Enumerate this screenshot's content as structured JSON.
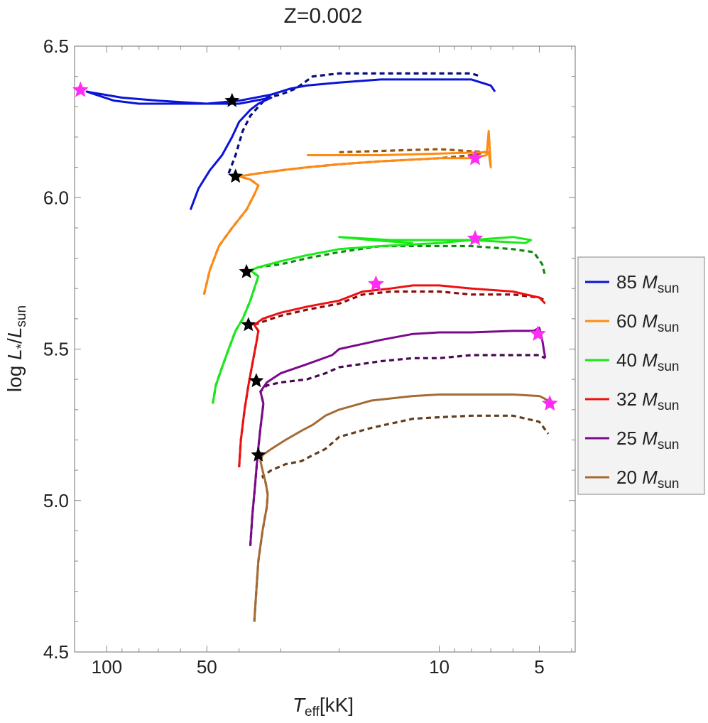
{
  "chart_data": {
    "type": "line",
    "title": "Z=0.002",
    "xlabel_main": "T",
    "xlabel_sub": "eff",
    "xlabel_unit": "[kK]",
    "ylabel_prefix": "log ",
    "ylabel_L": "L",
    "ylabel_star": "*",
    "ylabel_sun": "sun",
    "x_scale": "log",
    "x_reversed": true,
    "xlim": [
      125,
      3.9
    ],
    "ylim": [
      4.5,
      6.5
    ],
    "x_ticks": [
      100,
      50,
      10,
      5
    ],
    "x_tick_labels": [
      "100",
      "50",
      "10",
      "5"
    ],
    "y_ticks": [
      4.5,
      5.0,
      5.5,
      6.0,
      6.5
    ],
    "y_tick_labels": [
      "4.5",
      "5.0",
      "5.5",
      "6.0",
      "6.5"
    ],
    "grid": false,
    "legend_position": "right",
    "legend_unit_M": "M",
    "legend_unit_sub": "sun",
    "series": [
      {
        "name": "85",
        "color": "#0a14d6",
        "solid": [
          [
            56,
            5.96
          ],
          [
            53,
            6.03
          ],
          [
            49,
            6.09
          ],
          [
            45,
            6.14
          ],
          [
            42,
            6.2
          ],
          [
            40,
            6.25
          ],
          [
            37,
            6.29
          ],
          [
            35,
            6.31
          ],
          [
            32,
            6.33
          ],
          [
            40,
            6.31
          ],
          [
            60,
            6.31
          ],
          [
            80,
            6.31
          ],
          [
            95,
            6.32
          ],
          [
            115,
            6.35
          ],
          [
            90,
            6.33
          ],
          [
            70,
            6.32
          ],
          [
            50,
            6.31
          ],
          [
            40,
            6.32
          ],
          [
            32,
            6.34
          ],
          [
            28,
            6.36
          ],
          [
            25,
            6.37
          ],
          [
            20,
            6.38
          ],
          [
            15,
            6.39
          ],
          [
            10,
            6.39
          ],
          [
            8,
            6.39
          ],
          [
            7,
            6.37
          ],
          [
            6.8,
            6.35
          ]
        ],
        "dashed": [
          [
            43,
            6.08
          ],
          [
            41,
            6.14
          ],
          [
            39,
            6.22
          ],
          [
            37,
            6.27
          ],
          [
            35,
            6.3
          ],
          [
            33,
            6.33
          ],
          [
            30,
            6.34
          ],
          [
            27,
            6.36
          ],
          [
            24,
            6.4
          ],
          [
            20,
            6.41
          ],
          [
            15,
            6.41
          ],
          [
            10,
            6.41
          ],
          [
            8,
            6.41
          ],
          [
            7.5,
            6.4
          ]
        ],
        "zams_marker": [
          42,
          6.32
        ],
        "end_marker": [
          120,
          6.355
        ]
      },
      {
        "name": "60",
        "color": "#ff8a12",
        "solid": [
          [
            51,
            5.68
          ],
          [
            49,
            5.76
          ],
          [
            46,
            5.84
          ],
          [
            42,
            5.9
          ],
          [
            38,
            5.96
          ],
          [
            36,
            6.01
          ],
          [
            35,
            6.04
          ],
          [
            37,
            6.06
          ],
          [
            40,
            6.07
          ],
          [
            35,
            6.08
          ],
          [
            30,
            6.09
          ],
          [
            25,
            6.1
          ],
          [
            20,
            6.11
          ],
          [
            15,
            6.12
          ],
          [
            10,
            6.13
          ],
          [
            8,
            6.13
          ],
          [
            7.2,
            6.14
          ],
          [
            7.1,
            6.22
          ],
          [
            7.0,
            6.1
          ],
          [
            7.1,
            6.15
          ],
          [
            15,
            6.14
          ],
          [
            25,
            6.14
          ]
        ],
        "dashed": [
          [
            51,
            5.68
          ],
          [
            49,
            5.76
          ],
          [
            46,
            5.84
          ],
          [
            42,
            5.9
          ],
          [
            38,
            5.96
          ],
          [
            36,
            6.01
          ],
          [
            35,
            6.04
          ],
          [
            37,
            6.06
          ],
          [
            40,
            6.07
          ],
          [
            35,
            6.08
          ],
          [
            30,
            6.09
          ],
          [
            25,
            6.1
          ],
          [
            20,
            6.11
          ],
          [
            15,
            6.12
          ],
          [
            10,
            6.13
          ],
          [
            8,
            6.14
          ],
          [
            7.2,
            6.15
          ],
          [
            10,
            6.16
          ],
          [
            20,
            6.15
          ]
        ],
        "zams_marker": [
          41,
          6.07
        ],
        "end_marker": [
          7.8,
          6.13
        ]
      },
      {
        "name": "40",
        "color": "#18ea18",
        "solid": [
          [
            48,
            5.32
          ],
          [
            47,
            5.38
          ],
          [
            45,
            5.44
          ],
          [
            43,
            5.5
          ],
          [
            41,
            5.56
          ],
          [
            39,
            5.6
          ],
          [
            37,
            5.66
          ],
          [
            36,
            5.7
          ],
          [
            35,
            5.74
          ],
          [
            37,
            5.76
          ],
          [
            35,
            5.77
          ],
          [
            30,
            5.79
          ],
          [
            25,
            5.81
          ],
          [
            20,
            5.83
          ],
          [
            15,
            5.84
          ],
          [
            10,
            5.85
          ],
          [
            8,
            5.86
          ],
          [
            6,
            5.87
          ],
          [
            5.3,
            5.86
          ],
          [
            5.5,
            5.85
          ],
          [
            8,
            5.86
          ],
          [
            14,
            5.86
          ],
          [
            20,
            5.87
          ],
          [
            16,
            5.86
          ],
          [
            12,
            5.85
          ]
        ],
        "dashed": [
          [
            48,
            5.32
          ],
          [
            47,
            5.38
          ],
          [
            45,
            5.44
          ],
          [
            43,
            5.5
          ],
          [
            41,
            5.56
          ],
          [
            39,
            5.6
          ],
          [
            37,
            5.66
          ],
          [
            36,
            5.7
          ],
          [
            35,
            5.74
          ],
          [
            37,
            5.76
          ],
          [
            35,
            5.77
          ],
          [
            30,
            5.78
          ],
          [
            25,
            5.8
          ],
          [
            20,
            5.82
          ],
          [
            15,
            5.84
          ],
          [
            10,
            5.84
          ],
          [
            8,
            5.84
          ],
          [
            6,
            5.83
          ],
          [
            5.2,
            5.82
          ],
          [
            4.9,
            5.78
          ],
          [
            4.8,
            5.74
          ]
        ],
        "zams_marker": [
          38,
          5.755
        ],
        "end_marker": [
          7.8,
          5.865
        ]
      },
      {
        "name": "32",
        "color": "#ee1010",
        "solid": [
          [
            40,
            5.11
          ],
          [
            39.5,
            5.2
          ],
          [
            38.5,
            5.3
          ],
          [
            37.5,
            5.38
          ],
          [
            36.5,
            5.45
          ],
          [
            35.5,
            5.52
          ],
          [
            35,
            5.56
          ],
          [
            36,
            5.58
          ],
          [
            34,
            5.6
          ],
          [
            30,
            5.62
          ],
          [
            25,
            5.64
          ],
          [
            20,
            5.66
          ],
          [
            17,
            5.69
          ],
          [
            14,
            5.7
          ],
          [
            12,
            5.71
          ],
          [
            10,
            5.71
          ],
          [
            8,
            5.7
          ],
          [
            6,
            5.69
          ],
          [
            5,
            5.67
          ],
          [
            4.8,
            5.65
          ]
        ],
        "dashed": [
          [
            40,
            5.11
          ],
          [
            39.5,
            5.2
          ],
          [
            38.5,
            5.3
          ],
          [
            37.5,
            5.38
          ],
          [
            36.5,
            5.45
          ],
          [
            35.5,
            5.52
          ],
          [
            35,
            5.56
          ],
          [
            36,
            5.58
          ],
          [
            34,
            5.59
          ],
          [
            30,
            5.61
          ],
          [
            25,
            5.63
          ],
          [
            20,
            5.65
          ],
          [
            17,
            5.68
          ],
          [
            14,
            5.69
          ],
          [
            12,
            5.69
          ],
          [
            10,
            5.69
          ],
          [
            8,
            5.68
          ],
          [
            6,
            5.68
          ],
          [
            5,
            5.67
          ],
          [
            4.8,
            5.66
          ]
        ],
        "zams_marker": [
          37.5,
          5.58
        ],
        "end_marker": [
          15.5,
          5.715
        ]
      },
      {
        "name": "25",
        "color": "#7a0a8a",
        "solid": [
          [
            37,
            4.85
          ],
          [
            36.5,
            4.95
          ],
          [
            35.8,
            5.05
          ],
          [
            35.2,
            5.15
          ],
          [
            34.5,
            5.24
          ],
          [
            33.8,
            5.32
          ],
          [
            34.5,
            5.36
          ],
          [
            33,
            5.39
          ],
          [
            30,
            5.42
          ],
          [
            25,
            5.45
          ],
          [
            21,
            5.48
          ],
          [
            20,
            5.5
          ],
          [
            15,
            5.53
          ],
          [
            12,
            5.55
          ],
          [
            10,
            5.555
          ],
          [
            8,
            5.555
          ],
          [
            6,
            5.56
          ],
          [
            5.2,
            5.56
          ],
          [
            5,
            5.57
          ],
          [
            4.9,
            5.53
          ],
          [
            4.8,
            5.47
          ]
        ],
        "dashed": [
          [
            37,
            4.85
          ],
          [
            36.5,
            4.95
          ],
          [
            35.8,
            5.05
          ],
          [
            35.2,
            5.15
          ],
          [
            34.5,
            5.24
          ],
          [
            33.8,
            5.32
          ],
          [
            34.5,
            5.36
          ],
          [
            33,
            5.38
          ],
          [
            30,
            5.39
          ],
          [
            25,
            5.4
          ],
          [
            22,
            5.42
          ],
          [
            20,
            5.44
          ],
          [
            15,
            5.46
          ],
          [
            12,
            5.47
          ],
          [
            10,
            5.47
          ],
          [
            8,
            5.48
          ],
          [
            6,
            5.48
          ],
          [
            5,
            5.48
          ],
          [
            4.8,
            5.47
          ]
        ],
        "zams_marker": [
          35.5,
          5.395
        ],
        "end_marker": [
          5.05,
          5.55
        ]
      },
      {
        "name": "20",
        "color": "#a56b35",
        "solid": [
          [
            36,
            4.6
          ],
          [
            35.5,
            4.7
          ],
          [
            35,
            4.8
          ],
          [
            34,
            4.9
          ],
          [
            33,
            4.98
          ],
          [
            32.8,
            5.02
          ],
          [
            33.3,
            5.06
          ],
          [
            34,
            5.1
          ],
          [
            34.5,
            5.13
          ],
          [
            34,
            5.15
          ],
          [
            32,
            5.17
          ],
          [
            29,
            5.2
          ],
          [
            26,
            5.23
          ],
          [
            24,
            5.25
          ],
          [
            22,
            5.28
          ],
          [
            20,
            5.3
          ],
          [
            16,
            5.33
          ],
          [
            12,
            5.345
          ],
          [
            10,
            5.35
          ],
          [
            8,
            5.35
          ],
          [
            6,
            5.35
          ],
          [
            5,
            5.345
          ],
          [
            4.7,
            5.33
          ]
        ],
        "dashed": [
          [
            36,
            4.6
          ],
          [
            35.5,
            4.7
          ],
          [
            35,
            4.8
          ],
          [
            34,
            4.9
          ],
          [
            33,
            4.98
          ],
          [
            32.8,
            5.02
          ],
          [
            33.3,
            5.06
          ],
          [
            34,
            5.08
          ],
          [
            32,
            5.1
          ],
          [
            29,
            5.12
          ],
          [
            26,
            5.13
          ],
          [
            24,
            5.15
          ],
          [
            22,
            5.17
          ],
          [
            20,
            5.21
          ],
          [
            16,
            5.24
          ],
          [
            12,
            5.27
          ],
          [
            10,
            5.275
          ],
          [
            8,
            5.28
          ],
          [
            6,
            5.28
          ],
          [
            5,
            5.26
          ],
          [
            4.7,
            5.22
          ]
        ],
        "zams_marker": [
          35,
          5.15
        ],
        "end_marker": [
          4.65,
          5.32
        ]
      }
    ]
  }
}
